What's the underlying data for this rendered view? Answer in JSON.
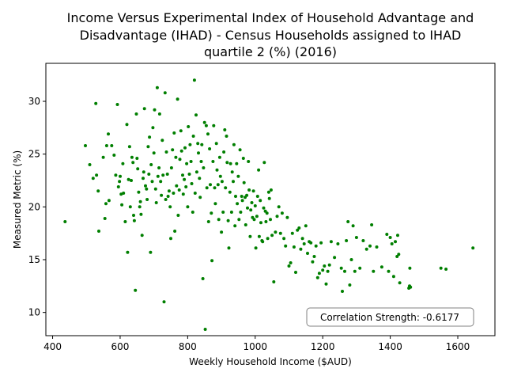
{
  "chart_data": {
    "type": "scatter",
    "title_lines": [
      "Income Versus Experimental Index of Household Advantage and",
      "Disadvantage (IHAD) - Census Households assigned to IHAD",
      "quartile 2 (%) (2016)"
    ],
    "xlabel": "Weekly Household Income ($AUD)",
    "ylabel": "Measured Metric (%)",
    "xlim": [
      380,
      1710
    ],
    "ylim": [
      7.8,
      33.6
    ],
    "xticks": [
      400,
      600,
      800,
      1000,
      1200,
      1400,
      1600
    ],
    "yticks": [
      10,
      15,
      20,
      25,
      30
    ],
    "grid": false,
    "point_color": "#007f00",
    "annotation": "Correlation Strength: -0.6177",
    "annotation_position": "bottom-right",
    "points": [
      [
        437,
        18.6
      ],
      [
        497,
        25.8
      ],
      [
        510,
        24.0
      ],
      [
        520,
        22.7
      ],
      [
        528,
        29.8
      ],
      [
        530,
        23.0
      ],
      [
        535,
        21.5
      ],
      [
        537,
        17.7
      ],
      [
        550,
        24.7
      ],
      [
        555,
        18.9
      ],
      [
        558,
        20.3
      ],
      [
        560,
        25.8
      ],
      [
        565,
        26.9
      ],
      [
        567,
        20.6
      ],
      [
        575,
        25.8
      ],
      [
        582,
        24.9
      ],
      [
        587,
        23.0
      ],
      [
        592,
        29.7
      ],
      [
        595,
        21.9
      ],
      [
        598,
        22.4
      ],
      [
        600,
        22.9
      ],
      [
        603,
        21.2
      ],
      [
        605,
        20.2
      ],
      [
        608,
        24.1
      ],
      [
        610,
        21.3
      ],
      [
        615,
        18.6
      ],
      [
        620,
        27.8
      ],
      [
        622,
        15.7
      ],
      [
        625,
        22.6
      ],
      [
        628,
        25.7
      ],
      [
        630,
        20.0
      ],
      [
        633,
        22.5
      ],
      [
        635,
        24.7
      ],
      [
        638,
        24.2
      ],
      [
        640,
        19.2
      ],
      [
        642,
        18.7
      ],
      [
        645,
        12.1
      ],
      [
        648,
        28.8
      ],
      [
        650,
        24.6
      ],
      [
        652,
        23.6
      ],
      [
        655,
        21.4
      ],
      [
        658,
        20.0
      ],
      [
        660,
        20.5
      ],
      [
        662,
        19.3
      ],
      [
        665,
        17.3
      ],
      [
        668,
        22.7
      ],
      [
        670,
        23.3
      ],
      [
        672,
        29.3
      ],
      [
        675,
        22.0
      ],
      [
        678,
        21.7
      ],
      [
        680,
        20.7
      ],
      [
        683,
        25.7
      ],
      [
        685,
        23.1
      ],
      [
        687,
        26.6
      ],
      [
        690,
        15.7
      ],
      [
        692,
        24.0
      ],
      [
        695,
        22.4
      ],
      [
        697,
        27.5
      ],
      [
        700,
        25.1
      ],
      [
        702,
        29.2
      ],
      [
        705,
        21.7
      ],
      [
        707,
        20.4
      ],
      [
        710,
        31.3
      ],
      [
        712,
        22.9
      ],
      [
        715,
        23.7
      ],
      [
        717,
        28.8
      ],
      [
        720,
        22.4
      ],
      [
        722,
        21.1
      ],
      [
        725,
        26.3
      ],
      [
        727,
        23.0
      ],
      [
        730,
        11.0
      ],
      [
        733,
        30.8
      ],
      [
        735,
        20.7
      ],
      [
        737,
        25.2
      ],
      [
        740,
        23.1
      ],
      [
        742,
        21.0
      ],
      [
        745,
        21.5
      ],
      [
        748,
        20.0
      ],
      [
        750,
        17.0
      ],
      [
        752,
        23.7
      ],
      [
        755,
        25.4
      ],
      [
        758,
        21.3
      ],
      [
        760,
        27.0
      ],
      [
        762,
        17.7
      ],
      [
        765,
        24.7
      ],
      [
        767,
        22.0
      ],
      [
        770,
        30.2
      ],
      [
        772,
        19.2
      ],
      [
        775,
        21.6
      ],
      [
        777,
        24.5
      ],
      [
        780,
        27.2
      ],
      [
        782,
        25.3
      ],
      [
        785,
        23.0
      ],
      [
        787,
        21.2
      ],
      [
        790,
        22.6
      ],
      [
        792,
        25.6
      ],
      [
        795,
        21.9
      ],
      [
        797,
        24.1
      ],
      [
        800,
        20.0
      ],
      [
        802,
        27.6
      ],
      [
        805,
        23.1
      ],
      [
        807,
        25.9
      ],
      [
        810,
        24.3
      ],
      [
        812,
        22.2
      ],
      [
        815,
        19.5
      ],
      [
        817,
        26.7
      ],
      [
        820,
        32.0
      ],
      [
        822,
        21.3
      ],
      [
        825,
        28.7
      ],
      [
        827,
        23.3
      ],
      [
        830,
        26.0
      ],
      [
        832,
        25.1
      ],
      [
        835,
        22.7
      ],
      [
        837,
        20.9
      ],
      [
        840,
        24.3
      ],
      [
        842,
        25.9
      ],
      [
        845,
        13.2
      ],
      [
        847,
        23.7
      ],
      [
        850,
        28.0
      ],
      [
        852,
        8.4
      ],
      [
        855,
        27.7
      ],
      [
        857,
        21.8
      ],
      [
        860,
        26.9
      ],
      [
        862,
        18.6
      ],
      [
        865,
        25.5
      ],
      [
        867,
        22.1
      ],
      [
        870,
        19.4
      ],
      [
        872,
        14.9
      ],
      [
        875,
        24.3
      ],
      [
        877,
        27.7
      ],
      [
        880,
        21.8
      ],
      [
        882,
        20.3
      ],
      [
        885,
        26.0
      ],
      [
        887,
        23.5
      ],
      [
        890,
        22.1
      ],
      [
        892,
        18.8
      ],
      [
        895,
        24.7
      ],
      [
        897,
        22.9
      ],
      [
        900,
        17.6
      ],
      [
        902,
        22.4
      ],
      [
        905,
        19.5
      ],
      [
        907,
        25.2
      ],
      [
        910,
        27.3
      ],
      [
        912,
        21.8
      ],
      [
        915,
        26.7
      ],
      [
        917,
        24.2
      ],
      [
        920,
        18.7
      ],
      [
        922,
        16.1
      ],
      [
        925,
        21.4
      ],
      [
        927,
        24.1
      ],
      [
        930,
        19.5
      ],
      [
        932,
        23.3
      ],
      [
        935,
        22.4
      ],
      [
        937,
        25.9
      ],
      [
        940,
        18.2
      ],
      [
        942,
        21.0
      ],
      [
        945,
        24.1
      ],
      [
        947,
        20.3
      ],
      [
        950,
        22.9
      ],
      [
        952,
        18.8
      ],
      [
        955,
        25.4
      ],
      [
        957,
        19.5
      ],
      [
        960,
        21.0
      ],
      [
        962,
        20.6
      ],
      [
        965,
        24.6
      ],
      [
        967,
        22.3
      ],
      [
        970,
        20.9
      ],
      [
        972,
        18.3
      ],
      [
        975,
        21.1
      ],
      [
        977,
        19.9
      ],
      [
        980,
        24.3
      ],
      [
        982,
        21.6
      ],
      [
        985,
        17.2
      ],
      [
        987,
        19.7
      ],
      [
        990,
        20.4
      ],
      [
        992,
        19.0
      ],
      [
        995,
        21.5
      ],
      [
        997,
        18.8
      ],
      [
        1000,
        20.1
      ],
      [
        1002,
        16.1
      ],
      [
        1005,
        19.1
      ],
      [
        1007,
        21.0
      ],
      [
        1010,
        23.5
      ],
      [
        1012,
        17.2
      ],
      [
        1015,
        20.6
      ],
      [
        1017,
        18.5
      ],
      [
        1020,
        16.8
      ],
      [
        1022,
        16.7
      ],
      [
        1025,
        19.9
      ],
      [
        1027,
        24.2
      ],
      [
        1030,
        19.6
      ],
      [
        1032,
        18.6
      ],
      [
        1035,
        19.4
      ],
      [
        1037,
        17.0
      ],
      [
        1040,
        21.4
      ],
      [
        1042,
        20.8
      ],
      [
        1045,
        18.8
      ],
      [
        1047,
        21.6
      ],
      [
        1050,
        17.3
      ],
      [
        1055,
        12.9
      ],
      [
        1060,
        17.6
      ],
      [
        1065,
        19.1
      ],
      [
        1070,
        20.0
      ],
      [
        1075,
        17.5
      ],
      [
        1080,
        19.4
      ],
      [
        1085,
        17.0
      ],
      [
        1090,
        16.3
      ],
      [
        1095,
        19.0
      ],
      [
        1100,
        14.4
      ],
      [
        1105,
        14.7
      ],
      [
        1110,
        17.5
      ],
      [
        1115,
        16.2
      ],
      [
        1120,
        13.8
      ],
      [
        1125,
        17.8
      ],
      [
        1130,
        18.0
      ],
      [
        1135,
        16.0
      ],
      [
        1140,
        17.0
      ],
      [
        1145,
        16.5
      ],
      [
        1150,
        18.2
      ],
      [
        1155,
        15.6
      ],
      [
        1160,
        16.7
      ],
      [
        1165,
        16.6
      ],
      [
        1170,
        14.8
      ],
      [
        1175,
        15.3
      ],
      [
        1180,
        16.3
      ],
      [
        1185,
        13.3
      ],
      [
        1190,
        13.7
      ],
      [
        1195,
        16.6
      ],
      [
        1200,
        14.0
      ],
      [
        1205,
        14.4
      ],
      [
        1210,
        12.7
      ],
      [
        1215,
        13.9
      ],
      [
        1220,
        14.5
      ],
      [
        1225,
        16.7
      ],
      [
        1235,
        15.2
      ],
      [
        1245,
        16.5
      ],
      [
        1255,
        14.2
      ],
      [
        1258,
        12.0
      ],
      [
        1265,
        13.9
      ],
      [
        1270,
        16.8
      ],
      [
        1275,
        18.6
      ],
      [
        1280,
        12.6
      ],
      [
        1285,
        15.0
      ],
      [
        1290,
        18.2
      ],
      [
        1295,
        13.9
      ],
      [
        1300,
        17.1
      ],
      [
        1310,
        14.2
      ],
      [
        1320,
        16.8
      ],
      [
        1330,
        16.0
      ],
      [
        1340,
        16.3
      ],
      [
        1345,
        18.3
      ],
      [
        1350,
        13.9
      ],
      [
        1360,
        16.2
      ],
      [
        1375,
        14.3
      ],
      [
        1390,
        17.4
      ],
      [
        1395,
        13.9
      ],
      [
        1400,
        17.1
      ],
      [
        1405,
        16.5
      ],
      [
        1410,
        13.4
      ],
      [
        1415,
        16.7
      ],
      [
        1420,
        15.3
      ],
      [
        1422,
        17.3
      ],
      [
        1425,
        15.5
      ],
      [
        1428,
        12.8
      ],
      [
        1455,
        12.3
      ],
      [
        1457,
        12.5
      ],
      [
        1458,
        14.2
      ],
      [
        1460,
        12.4
      ],
      [
        1550,
        14.2
      ],
      [
        1565,
        14.1
      ],
      [
        1645,
        16.1
      ]
    ]
  }
}
